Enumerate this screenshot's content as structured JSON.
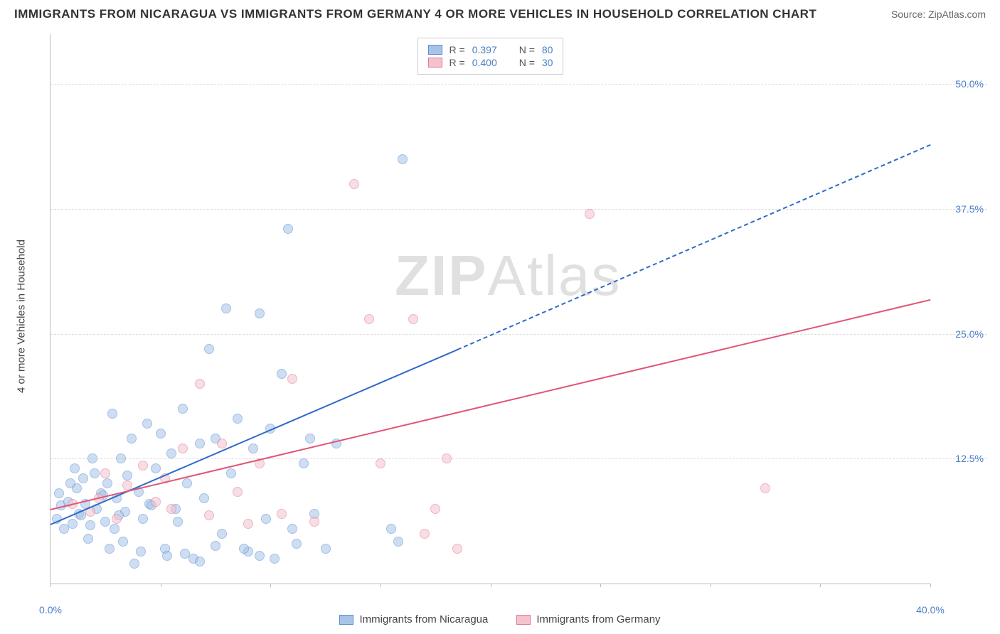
{
  "header": {
    "title": "IMMIGRANTS FROM NICARAGUA VS IMMIGRANTS FROM GERMANY 4 OR MORE VEHICLES IN HOUSEHOLD CORRELATION CHART",
    "source": "Source: ZipAtlas.com"
  },
  "chart": {
    "type": "scatter",
    "y_axis_label": "4 or more Vehicles in Household",
    "xlim": [
      0,
      40
    ],
    "ylim": [
      0,
      55
    ],
    "x_ticks": [
      0,
      5,
      10,
      15,
      20,
      25,
      30,
      35,
      40
    ],
    "x_tick_labels": {
      "0": "0.0%",
      "40": "40.0%"
    },
    "y_ticks": [
      12.5,
      25.0,
      37.5,
      50.0
    ],
    "y_tick_labels": [
      "12.5%",
      "25.0%",
      "37.5%",
      "50.0%"
    ],
    "grid_color": "#dddddd",
    "axis_color": "#bbbbbb",
    "background_color": "#ffffff",
    "tick_label_color": "#4a7ec7",
    "tick_label_fontsize": 14,
    "axis_label_color": "#444444",
    "axis_label_fontsize": 15,
    "marker_size": 14,
    "marker_opacity": 0.55,
    "trend_line_width": 2,
    "series": [
      {
        "name": "Immigrants from Nicaragua",
        "fill_color": "#a7c4e8",
        "border_color": "#5b8cd1",
        "trend_color": "#2e6bc7",
        "r": "0.397",
        "n": "80",
        "trend_start": [
          0,
          6
        ],
        "trend_end_solid": [
          18.5,
          23.5
        ],
        "trend_end_dash": [
          40,
          44
        ],
        "points": [
          [
            0.3,
            7.5
          ],
          [
            0.5,
            8.8
          ],
          [
            0.6,
            6.5
          ],
          [
            0.8,
            9.2
          ],
          [
            1.0,
            7.0
          ],
          [
            1.2,
            10.5
          ],
          [
            1.3,
            8.0
          ],
          [
            1.5,
            11.5
          ],
          [
            1.6,
            9.0
          ],
          [
            1.8,
            6.8
          ],
          [
            2.0,
            12.0
          ],
          [
            2.1,
            8.5
          ],
          [
            2.3,
            10.0
          ],
          [
            2.5,
            7.2
          ],
          [
            2.6,
            11.0
          ],
          [
            2.8,
            18.0
          ],
          [
            3.0,
            9.5
          ],
          [
            3.2,
            13.5
          ],
          [
            3.4,
            8.2
          ],
          [
            3.5,
            11.8
          ],
          [
            3.7,
            15.5
          ],
          [
            3.8,
            3.0
          ],
          [
            4.0,
            10.2
          ],
          [
            4.2,
            7.5
          ],
          [
            4.4,
            17.0
          ],
          [
            4.5,
            9.0
          ],
          [
            4.8,
            12.5
          ],
          [
            5.0,
            16.0
          ],
          [
            5.2,
            4.5
          ],
          [
            5.5,
            14.0
          ],
          [
            5.7,
            8.5
          ],
          [
            6.0,
            18.5
          ],
          [
            6.2,
            11.0
          ],
          [
            6.5,
            3.5
          ],
          [
            6.8,
            15.0
          ],
          [
            7.0,
            9.5
          ],
          [
            7.2,
            24.5
          ],
          [
            7.5,
            15.5
          ],
          [
            7.8,
            6.0
          ],
          [
            8.0,
            28.5
          ],
          [
            8.2,
            12.0
          ],
          [
            8.5,
            17.5
          ],
          [
            9.0,
            4.2
          ],
          [
            9.2,
            14.5
          ],
          [
            9.5,
            28.0
          ],
          [
            9.8,
            7.5
          ],
          [
            10.0,
            16.5
          ],
          [
            10.5,
            22.0
          ],
          [
            10.8,
            36.5
          ],
          [
            11.0,
            6.5
          ],
          [
            11.2,
            5.0
          ],
          [
            11.5,
            13.0
          ],
          [
            12.0,
            8.0
          ],
          [
            12.5,
            4.5
          ],
          [
            13.0,
            15.0
          ],
          [
            9.5,
            3.8
          ],
          [
            7.5,
            4.8
          ],
          [
            6.8,
            3.2
          ],
          [
            8.8,
            4.5
          ],
          [
            10.2,
            3.5
          ],
          [
            4.1,
            4.2
          ],
          [
            5.3,
            3.8
          ],
          [
            6.1,
            4.0
          ],
          [
            2.7,
            4.5
          ],
          [
            3.3,
            5.2
          ],
          [
            1.7,
            5.5
          ],
          [
            11.8,
            15.5
          ],
          [
            16.0,
            43.5
          ],
          [
            15.5,
            6.5
          ],
          [
            15.8,
            5.2
          ],
          [
            1.1,
            12.5
          ],
          [
            1.9,
            13.5
          ],
          [
            2.4,
            9.8
          ],
          [
            3.1,
            7.8
          ],
          [
            0.4,
            10.0
          ],
          [
            0.9,
            11.0
          ],
          [
            1.4,
            7.8
          ],
          [
            2.9,
            6.5
          ],
          [
            4.6,
            8.8
          ],
          [
            5.8,
            7.2
          ]
        ]
      },
      {
        "name": "Immigrants from Germany",
        "fill_color": "#f4c2cd",
        "border_color": "#e07a93",
        "trend_color": "#e05577",
        "r": "0.400",
        "n": "30",
        "trend_start": [
          0,
          7.5
        ],
        "trend_end_solid": [
          40,
          28.5
        ],
        "trend_end_dash": [
          40,
          28.5
        ],
        "points": [
          [
            1.0,
            9.0
          ],
          [
            1.8,
            8.2
          ],
          [
            2.5,
            12.0
          ],
          [
            3.0,
            7.5
          ],
          [
            3.5,
            10.8
          ],
          [
            4.2,
            12.8
          ],
          [
            4.8,
            9.2
          ],
          [
            5.5,
            8.5
          ],
          [
            6.0,
            14.5
          ],
          [
            6.8,
            21.0
          ],
          [
            7.2,
            7.8
          ],
          [
            7.8,
            15.0
          ],
          [
            8.5,
            10.2
          ],
          [
            9.0,
            7.0
          ],
          [
            9.5,
            13.0
          ],
          [
            10.5,
            8.0
          ],
          [
            11.0,
            21.5
          ],
          [
            12.0,
            7.2
          ],
          [
            13.8,
            41.0
          ],
          [
            14.5,
            27.5
          ],
          [
            15.0,
            13.0
          ],
          [
            16.5,
            27.5
          ],
          [
            17.0,
            6.0
          ],
          [
            17.5,
            8.5
          ],
          [
            18.0,
            13.5
          ],
          [
            24.5,
            38.0
          ],
          [
            32.5,
            10.5
          ],
          [
            18.5,
            4.5
          ],
          [
            5.2,
            11.5
          ],
          [
            2.2,
            9.5
          ]
        ]
      }
    ]
  },
  "legend_bottom": [
    {
      "swatch_fill": "#a7c4e8",
      "swatch_border": "#5b8cd1",
      "label": "Immigrants from Nicaragua"
    },
    {
      "swatch_fill": "#f4c2cd",
      "swatch_border": "#e07a93",
      "label": "Immigrants from Germany"
    }
  ],
  "watermark": {
    "bold": "ZIP",
    "light": "Atlas"
  }
}
